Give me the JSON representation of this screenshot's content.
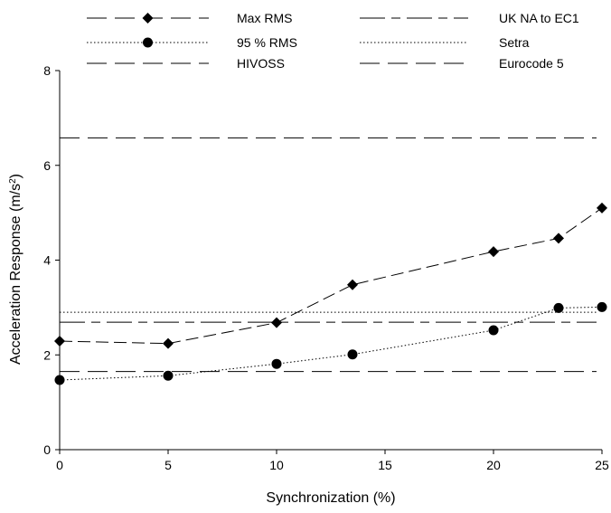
{
  "chart_data": {
    "type": "line",
    "title": "",
    "xlabel": "Synchronization (%)",
    "ylabel_main": "Acceleration Response (m/s",
    "ylabel_sup": "2",
    "ylabel_close": ")",
    "xlim": [
      0,
      25
    ],
    "ylim": [
      0,
      8
    ],
    "xticks": [
      0,
      5,
      10,
      15,
      20,
      25
    ],
    "yticks": [
      0,
      2,
      4,
      6,
      8
    ],
    "grid": false,
    "legend_position": "top",
    "series": [
      {
        "name": "Max RMS",
        "marker": "diamond",
        "dash": "long-dash",
        "x": [
          0,
          5,
          10,
          13.5,
          20,
          23,
          25
        ],
        "values": [
          2.29,
          2.24,
          2.68,
          3.48,
          4.18,
          4.46,
          5.1
        ]
      },
      {
        "name": "95 % RMS",
        "marker": "circle",
        "dash": "dotted",
        "x": [
          0,
          5,
          10,
          13.5,
          20,
          23,
          25
        ],
        "values": [
          1.47,
          1.56,
          1.81,
          2.01,
          2.52,
          2.99,
          3.01
        ]
      }
    ],
    "reference_lines": [
      {
        "name": "HIVOSS",
        "value": 6.58,
        "dash": "long-dash"
      },
      {
        "name": "UK NA to EC1",
        "value": 2.69,
        "dash": "dash-dot"
      },
      {
        "name": "Setra",
        "value": 2.9,
        "dash": "dotted"
      },
      {
        "name": "Eurocode 5",
        "value": 1.65,
        "dash": "long-dash"
      }
    ],
    "legend": [
      {
        "label": "Max RMS",
        "column": 0,
        "row": 0
      },
      {
        "label": "95 % RMS",
        "column": 0,
        "row": 1
      },
      {
        "label": "HIVOSS",
        "column": 0,
        "row": 2
      },
      {
        "label": "UK NA to EC1",
        "column": 1,
        "row": 0
      },
      {
        "label": "Setra",
        "column": 1,
        "row": 1
      },
      {
        "label": "Eurocode 5",
        "column": 1,
        "row": 2
      }
    ]
  }
}
